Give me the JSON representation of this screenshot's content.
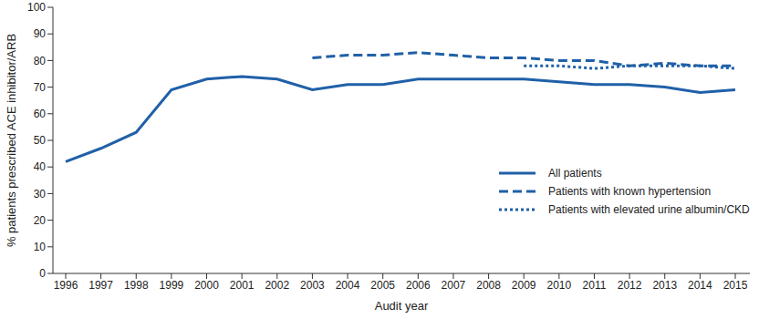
{
  "chart_data": {
    "type": "line",
    "x_label": "Audit year",
    "y_label": "% patients prescribed ACE inhibitor/ARB",
    "categories": [
      "1996",
      "1997",
      "1998",
      "1999",
      "2000",
      "2001",
      "2002",
      "2003",
      "2004",
      "2005",
      "2006",
      "2007",
      "2008",
      "2009",
      "2010",
      "2011",
      "2012",
      "2013",
      "2014",
      "2015"
    ],
    "series": [
      {
        "name": "All patients",
        "color": "#2060a8",
        "line_style": "solid",
        "values": [
          42,
          47,
          53,
          69,
          73,
          74,
          73,
          69,
          71,
          71,
          73,
          73,
          73,
          73,
          72,
          71,
          71,
          70,
          68,
          69
        ]
      },
      {
        "name": "Patients with known hypertension",
        "color": "#2060a8",
        "line_style": "dashed",
        "values": [
          null,
          null,
          null,
          null,
          null,
          null,
          null,
          81,
          82,
          82,
          83,
          82,
          81,
          81,
          80,
          80,
          78,
          79,
          78,
          78
        ]
      },
      {
        "name": "Patients with elevated urine albumin/CKD",
        "color": "#2060a8",
        "line_style": "dotted",
        "values": [
          null,
          null,
          null,
          null,
          null,
          null,
          null,
          null,
          null,
          null,
          null,
          null,
          null,
          78,
          78,
          77,
          78,
          78,
          78,
          77
        ]
      }
    ],
    "ylim": [
      0,
      100
    ],
    "yticks": [
      0,
      10,
      20,
      30,
      40,
      50,
      60,
      70,
      80,
      90,
      100
    ],
    "grid": false,
    "legend": "lower right"
  }
}
